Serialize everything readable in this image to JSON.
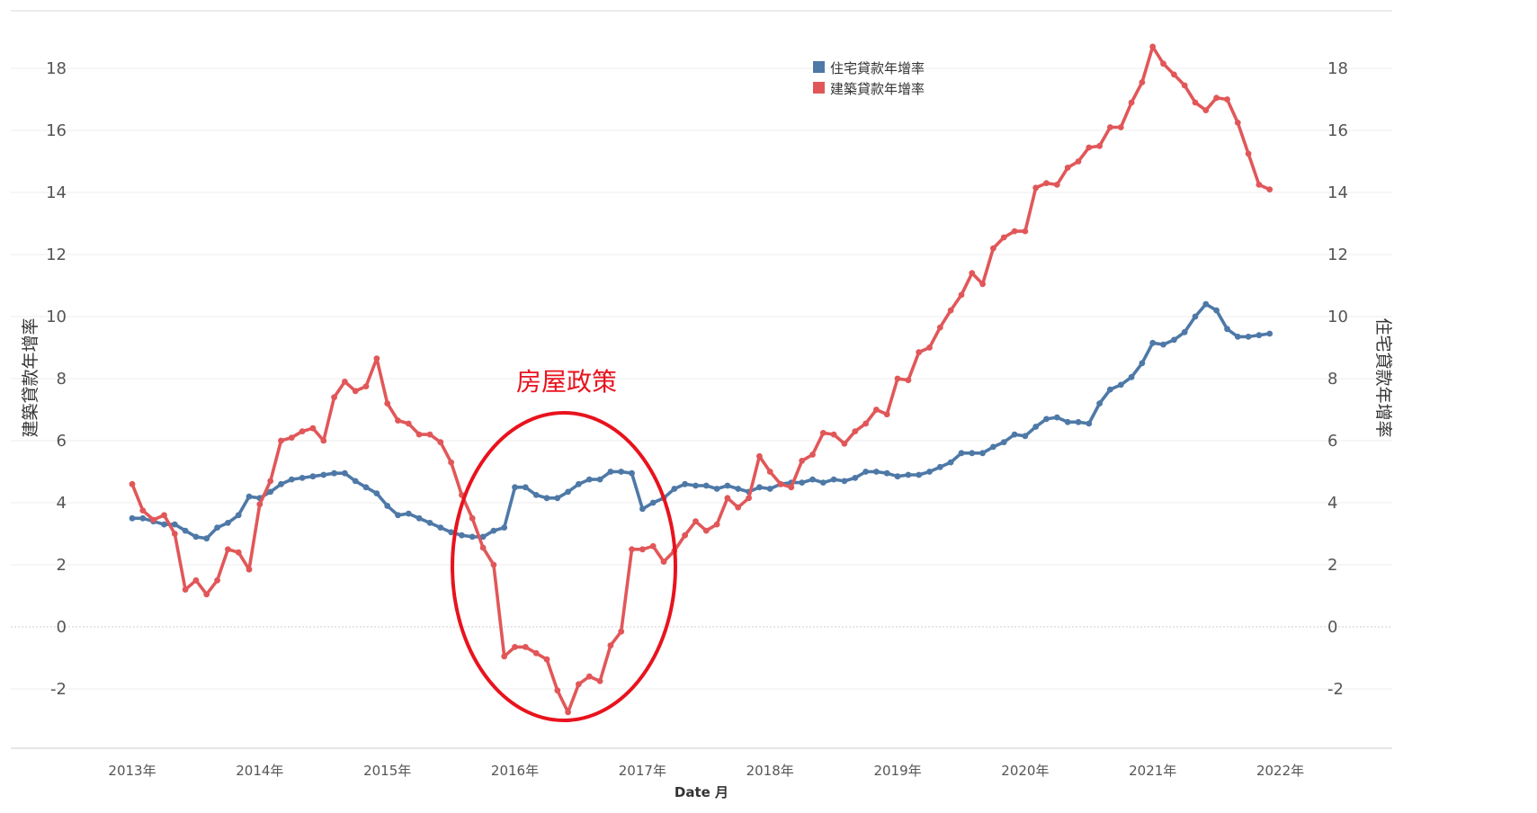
{
  "chart_data": {
    "type": "line",
    "xlabel": "Date 月",
    "ylabel_left": "建築貸款年增率",
    "ylabel_right": "住宅貸款年增率",
    "ylim": [
      -3.8,
      19.5
    ],
    "yticks": [
      18,
      16,
      14,
      12,
      10,
      8,
      6,
      4,
      2,
      0,
      -2
    ],
    "x_start": "2013-01",
    "x_end": "2022-01",
    "xticks": [
      {
        "label": "2013年",
        "month": 0
      },
      {
        "label": "2014年",
        "month": 12
      },
      {
        "label": "2015年",
        "month": 24
      },
      {
        "label": "2016年",
        "month": 36
      },
      {
        "label": "2017年",
        "month": 48
      },
      {
        "label": "2018年",
        "month": 60
      },
      {
        "label": "2019年",
        "month": 72
      },
      {
        "label": "2020年",
        "month": 84
      },
      {
        "label": "2021年",
        "month": 96
      },
      {
        "label": "2022年",
        "month": 108
      }
    ],
    "grid": true,
    "legend_position": "top-center",
    "annotation": {
      "text": "房屋政策",
      "color": "#e8131e"
    },
    "series": [
      {
        "name": "住宅貸款年增率",
        "color": "#4e79a7",
        "axis": "right",
        "values": [
          3.5,
          3.5,
          3.4,
          3.3,
          3.3,
          3.1,
          2.9,
          2.85,
          3.2,
          3.35,
          3.6,
          4.2,
          4.15,
          4.35,
          4.6,
          4.75,
          4.8,
          4.85,
          4.9,
          4.95,
          4.95,
          4.7,
          4.5,
          4.3,
          3.9,
          3.6,
          3.65,
          3.5,
          3.35,
          3.2,
          3.05,
          2.95,
          2.9,
          2.9,
          3.1,
          3.2,
          4.5,
          4.5,
          4.25,
          4.15,
          4.15,
          4.35,
          4.6,
          4.75,
          4.75,
          5.0,
          5.0,
          4.95,
          3.8,
          4.0,
          4.15,
          4.45,
          4.6,
          4.55,
          4.55,
          4.45,
          4.55,
          4.45,
          4.35,
          4.5,
          4.45,
          4.6,
          4.65,
          4.65,
          4.75,
          4.65,
          4.75,
          4.7,
          4.8,
          5.0,
          5.0,
          4.95,
          4.85,
          4.9,
          4.9,
          5.0,
          5.15,
          5.3,
          5.6,
          5.6,
          5.6,
          5.8,
          5.95,
          6.2,
          6.15,
          6.45,
          6.7,
          6.75,
          6.6,
          6.6,
          6.55,
          7.2,
          7.65,
          7.8,
          8.05,
          8.5,
          9.15,
          9.1,
          9.25,
          9.5,
          10.0,
          10.4,
          10.2,
          9.6,
          9.35,
          9.35,
          9.4,
          9.45
        ]
      },
      {
        "name": "建築貸款年增率",
        "color": "#e15759",
        "axis": "left",
        "values": [
          4.6,
          3.75,
          3.45,
          3.6,
          3.0,
          1.2,
          1.5,
          1.05,
          1.5,
          2.5,
          2.4,
          1.85,
          3.95,
          4.7,
          6.0,
          6.1,
          6.3,
          6.4,
          6.0,
          7.4,
          7.9,
          7.6,
          7.75,
          8.65,
          7.2,
          6.65,
          6.55,
          6.2,
          6.2,
          5.95,
          5.3,
          4.25,
          3.5,
          2.55,
          2.0,
          -0.95,
          -0.65,
          -0.65,
          -0.85,
          -1.05,
          -2.05,
          -2.75,
          -1.85,
          -1.6,
          -1.75,
          -0.6,
          -0.15,
          2.5,
          2.5,
          2.6,
          2.1,
          2.45,
          2.95,
          3.4,
          3.1,
          3.3,
          4.15,
          3.85,
          4.15,
          5.5,
          5.0,
          4.6,
          4.5,
          5.35,
          5.55,
          6.25,
          6.2,
          5.9,
          6.3,
          6.55,
          7.0,
          6.85,
          8.0,
          7.95,
          8.85,
          9.0,
          9.65,
          10.2,
          10.7,
          11.4,
          11.05,
          12.2,
          12.55,
          12.75,
          12.75,
          14.15,
          14.3,
          14.25,
          14.8,
          15.0,
          15.45,
          15.5,
          16.1,
          16.1,
          16.9,
          17.55,
          18.7,
          18.15,
          17.8,
          17.45,
          16.9,
          16.65,
          17.05,
          17.0,
          16.25,
          15.25,
          14.25,
          14.1
        ]
      }
    ]
  }
}
